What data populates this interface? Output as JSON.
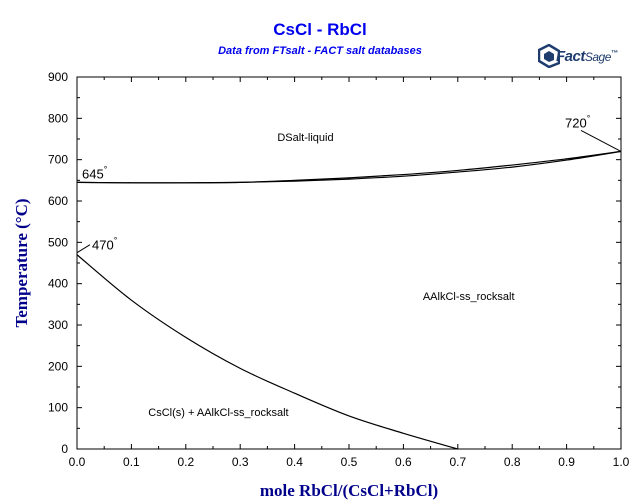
{
  "header": {
    "title": "CsCl - RbCl",
    "subtitle": "Data from FTsalt - FACT salt databases",
    "logo_text_a": "Fact",
    "logo_text_b": "Sage",
    "logo_mark": "™"
  },
  "colors": {
    "title": "#0000ee",
    "axis_label": "#00008b",
    "curve": "#000000",
    "logo": "#1f3c6e"
  },
  "chart_data": {
    "type": "line",
    "xlabel": "mole RbCl/(CsCl+RbCl)",
    "ylabel": "Temperature (°C)",
    "xlim": [
      0,
      1
    ],
    "ylim": [
      0,
      900
    ],
    "xticks": [
      0.0,
      0.1,
      0.2,
      0.3,
      0.4,
      0.5,
      0.6,
      0.7,
      0.8,
      0.9,
      1.0
    ],
    "xtick_labels": [
      "0.0",
      "0.1",
      "0.2",
      "0.3",
      "0.4",
      "0.5",
      "0.6",
      "0.7",
      "0.8",
      "0.9",
      "1.0"
    ],
    "yticks": [
      0,
      100,
      200,
      300,
      400,
      500,
      600,
      700,
      800,
      900
    ],
    "ytick_labels": [
      "0",
      "100",
      "200",
      "300",
      "400",
      "500",
      "600",
      "700",
      "800",
      "900"
    ],
    "grid": false,
    "series": [
      {
        "x": [
          0.0,
          0.1,
          0.2,
          0.3,
          0.4,
          0.5,
          0.6,
          0.7,
          0.8,
          0.9,
          1.0
        ],
        "y": [
          645,
          644,
          644,
          645,
          650,
          656,
          664,
          674,
          687,
          702,
          720
        ]
      },
      {
        "x": [
          0.0,
          0.1,
          0.2,
          0.3,
          0.4,
          0.5,
          0.6,
          0.7,
          0.8,
          0.9,
          1.0
        ],
        "y": [
          645,
          644,
          644,
          645,
          648,
          653,
          660,
          670,
          682,
          699,
          720
        ]
      },
      {
        "x": [
          0.0,
          0.1,
          0.2,
          0.3,
          0.4,
          0.5,
          0.6,
          0.7
        ],
        "y": [
          470,
          360,
          270,
          195,
          135,
          80,
          38,
          0
        ]
      }
    ],
    "annotations": [
      {
        "text": "645°",
        "type": "temp",
        "x": 0.0,
        "y": 645
      },
      {
        "text": "470°",
        "type": "temp",
        "x": 0.0,
        "y": 470
      },
      {
        "text": "720°",
        "type": "temp",
        "x": 1.0,
        "y": 720
      },
      {
        "text": "DSalt-liquid",
        "type": "region",
        "x": 0.42,
        "y": 755
      },
      {
        "text": "AAlkCl-ss_rocksalt",
        "type": "region",
        "x": 0.72,
        "y": 370
      },
      {
        "text": "CsCl(s) + AAlkCl-ss_rocksalt",
        "type": "region",
        "x": 0.26,
        "y": 90
      }
    ]
  }
}
